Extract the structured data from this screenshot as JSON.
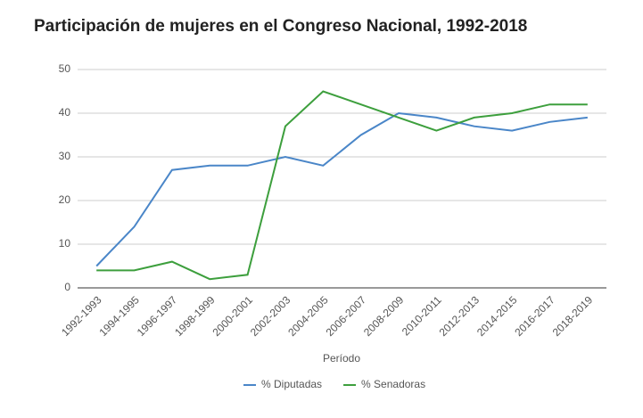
{
  "chart_data": {
    "type": "line",
    "title": "Participación de mujeres en el Congreso Nacional, 1992-2018",
    "x_label": "Período",
    "categories": [
      "1992-1993",
      "1994-1995",
      "1996-1997",
      "1998-1999",
      "2000-2001",
      "2002-2003",
      "2004-2005",
      "2006-2007",
      "2008-2009",
      "2010-2011",
      "2012-2013",
      "2014-2015",
      "2016-2017",
      "2018-2019"
    ],
    "series": [
      {
        "name": "% Diputadas",
        "color": "#4a86c8",
        "values": [
          5,
          14,
          27,
          28,
          28,
          30,
          28,
          35,
          40,
          39,
          37,
          36,
          38,
          39
        ]
      },
      {
        "name": "% Senadoras",
        "color": "#3d9f3d",
        "values": [
          4,
          4,
          6,
          2,
          3,
          37,
          45,
          42,
          39,
          36,
          39,
          40,
          42,
          42
        ]
      }
    ],
    "ylim": [
      0,
      50
    ],
    "yticks": [
      0,
      10,
      20,
      30,
      40,
      50
    ],
    "grid": true,
    "legend": "bottom"
  }
}
